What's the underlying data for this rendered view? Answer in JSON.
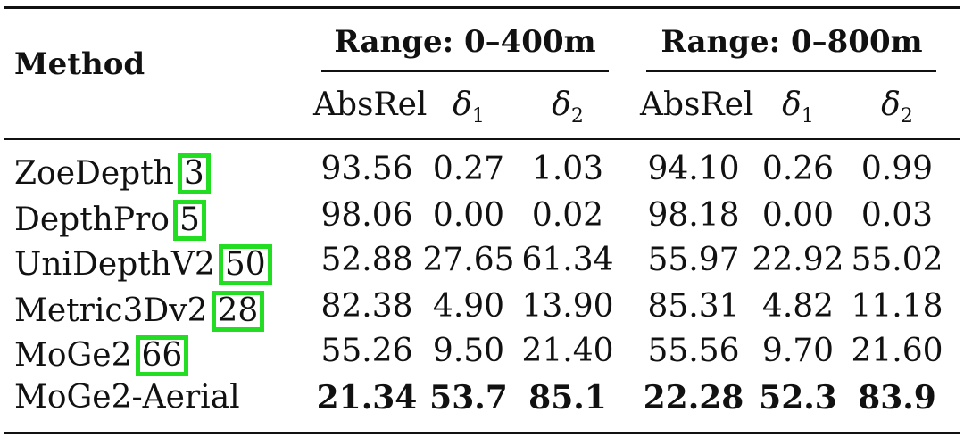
{
  "table": {
    "method_header": "Method",
    "groups": [
      {
        "label": "Range: 0–400m"
      },
      {
        "label": "Range: 0–800m"
      }
    ],
    "subheaders": [
      {
        "label": "AbsRel",
        "italic": false,
        "sub": ""
      },
      {
        "label": "δ",
        "italic": true,
        "sub": "1"
      },
      {
        "label": "δ",
        "italic": true,
        "sub": "2"
      },
      {
        "label": "AbsRel",
        "italic": false,
        "sub": ""
      },
      {
        "label": "δ",
        "italic": true,
        "sub": "1"
      },
      {
        "label": "δ",
        "italic": true,
        "sub": "2"
      }
    ],
    "rows": [
      {
        "method": "ZoeDepth",
        "cite": "3",
        "values": [
          "93.56",
          "0.27",
          "1.03",
          "94.10",
          "0.26",
          "0.99"
        ],
        "bold": false
      },
      {
        "method": "DepthPro",
        "cite": "5",
        "values": [
          "98.06",
          "0.00",
          "0.02",
          "98.18",
          "0.00",
          "0.03"
        ],
        "bold": false
      },
      {
        "method": "UniDepthV2",
        "cite": "50",
        "values": [
          "52.88",
          "27.65",
          "61.34",
          "55.97",
          "22.92",
          "55.02"
        ],
        "bold": false
      },
      {
        "method": "Metric3Dv2",
        "cite": "28",
        "values": [
          "82.38",
          "4.90",
          "13.90",
          "85.31",
          "4.82",
          "11.18"
        ],
        "bold": false
      },
      {
        "method": "MoGe2",
        "cite": "66",
        "values": [
          "55.26",
          "9.50",
          "21.40",
          "55.56",
          "9.70",
          "21.60"
        ],
        "bold": false
      },
      {
        "method": "MoGe2-Aerial",
        "cite": "",
        "values": [
          "21.34",
          "53.7",
          "85.1",
          "22.28",
          "52.3",
          "83.9"
        ],
        "bold": true
      }
    ],
    "highlight_color": "#22dd22"
  }
}
